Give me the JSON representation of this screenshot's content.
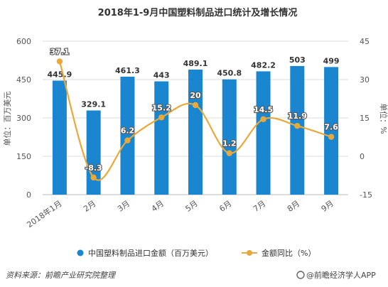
{
  "chart_data": {
    "type": "bar",
    "title": "2018年1-9月中国塑料制品进口统计及增长情况",
    "categories": [
      "2018年1月",
      "2月",
      "3月",
      "4月",
      "5月",
      "6月",
      "7月",
      "8月",
      "9月"
    ],
    "series": [
      {
        "name": "中国塑料制品进口金额（百万美元）",
        "type": "bar",
        "axis": "left",
        "color": "#1a86d0",
        "values": [
          445.9,
          329.1,
          461.3,
          443,
          489.1,
          450.8,
          482.2,
          503,
          499
        ],
        "labels": [
          "445.9",
          "329.1",
          "461.3",
          "443",
          "489.1",
          "450.8",
          "482.2",
          "503",
          "499"
        ]
      },
      {
        "name": "金额同比（%）",
        "type": "line",
        "axis": "right",
        "color": "#e8a93a",
        "values": [
          37.1,
          -8.3,
          6.2,
          15.2,
          20,
          1.2,
          14.5,
          11.9,
          7.6
        ],
        "labels": [
          "37.1",
          "-8.3",
          "6.2",
          "15.2",
          "20",
          "1.2",
          "14.5",
          "11.9",
          "7.6"
        ]
      }
    ],
    "y_left": {
      "label": "单位：百万美元",
      "range": [
        0,
        600
      ],
      "ticks": [
        0,
        150,
        300,
        450,
        600
      ],
      "tick_labels": [
        "0",
        "150",
        "300",
        "450",
        "600"
      ]
    },
    "y_right": {
      "label": "单位：%",
      "range": [
        -15,
        45
      ],
      "ticks": [
        -15,
        0,
        15,
        30,
        45
      ],
      "tick_labels": [
        "-15",
        "0",
        "15",
        "30",
        "45"
      ]
    },
    "grid": true,
    "legend_position": "bottom"
  },
  "footer": {
    "source": "资料来源：前瞻产业研究院整理",
    "brand": "@前瞻经济学人APP"
  }
}
